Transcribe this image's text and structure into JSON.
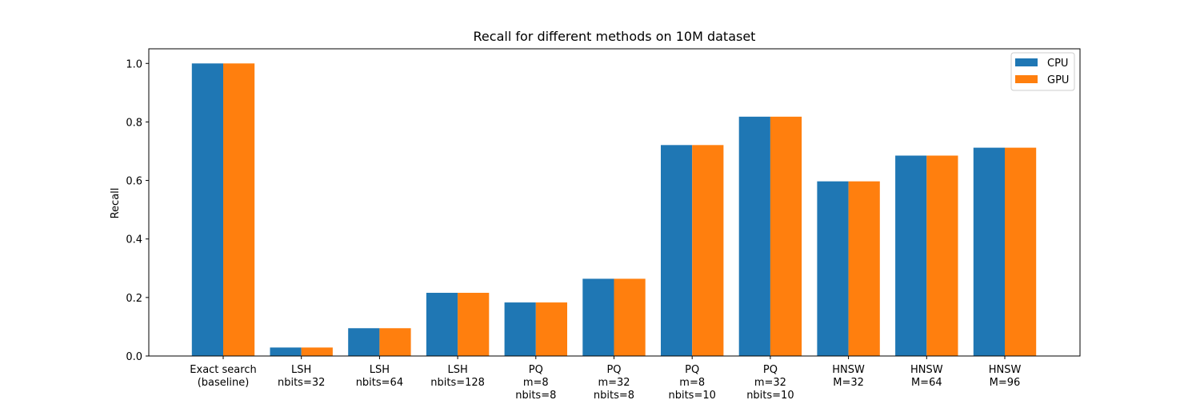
{
  "chart_data": {
    "type": "bar",
    "title": "Recall for different methods on 10M dataset",
    "xlabel": "",
    "ylabel": "Recall",
    "ylim": [
      0,
      1.05
    ],
    "yticks": [
      "0.0",
      "0.2",
      "0.4",
      "0.6",
      "0.8",
      "1.0"
    ],
    "grid": false,
    "legend_position": "top-right",
    "categories": [
      [
        "Exact search",
        "(baseline)"
      ],
      [
        "LSH",
        "nbits=32"
      ],
      [
        "LSH",
        "nbits=64"
      ],
      [
        "LSH",
        "nbits=128"
      ],
      [
        "PQ",
        "m=8",
        "nbits=8"
      ],
      [
        "PQ",
        "m=32",
        "nbits=8"
      ],
      [
        "PQ",
        "m=8",
        "nbits=10"
      ],
      [
        "PQ",
        "m=32",
        "nbits=10"
      ],
      [
        "HNSW",
        "M=32"
      ],
      [
        "HNSW",
        "M=64"
      ],
      [
        "HNSW",
        "M=96"
      ]
    ],
    "series": [
      {
        "name": "CPU",
        "color": "#1f77b4",
        "values": [
          1.0,
          0.029,
          0.095,
          0.216,
          0.183,
          0.264,
          0.721,
          0.818,
          0.597,
          0.685,
          0.712
        ]
      },
      {
        "name": "GPU",
        "color": "#ff7f0e",
        "values": [
          1.0,
          0.029,
          0.095,
          0.216,
          0.183,
          0.264,
          0.721,
          0.818,
          0.597,
          0.685,
          0.712
        ]
      }
    ]
  }
}
